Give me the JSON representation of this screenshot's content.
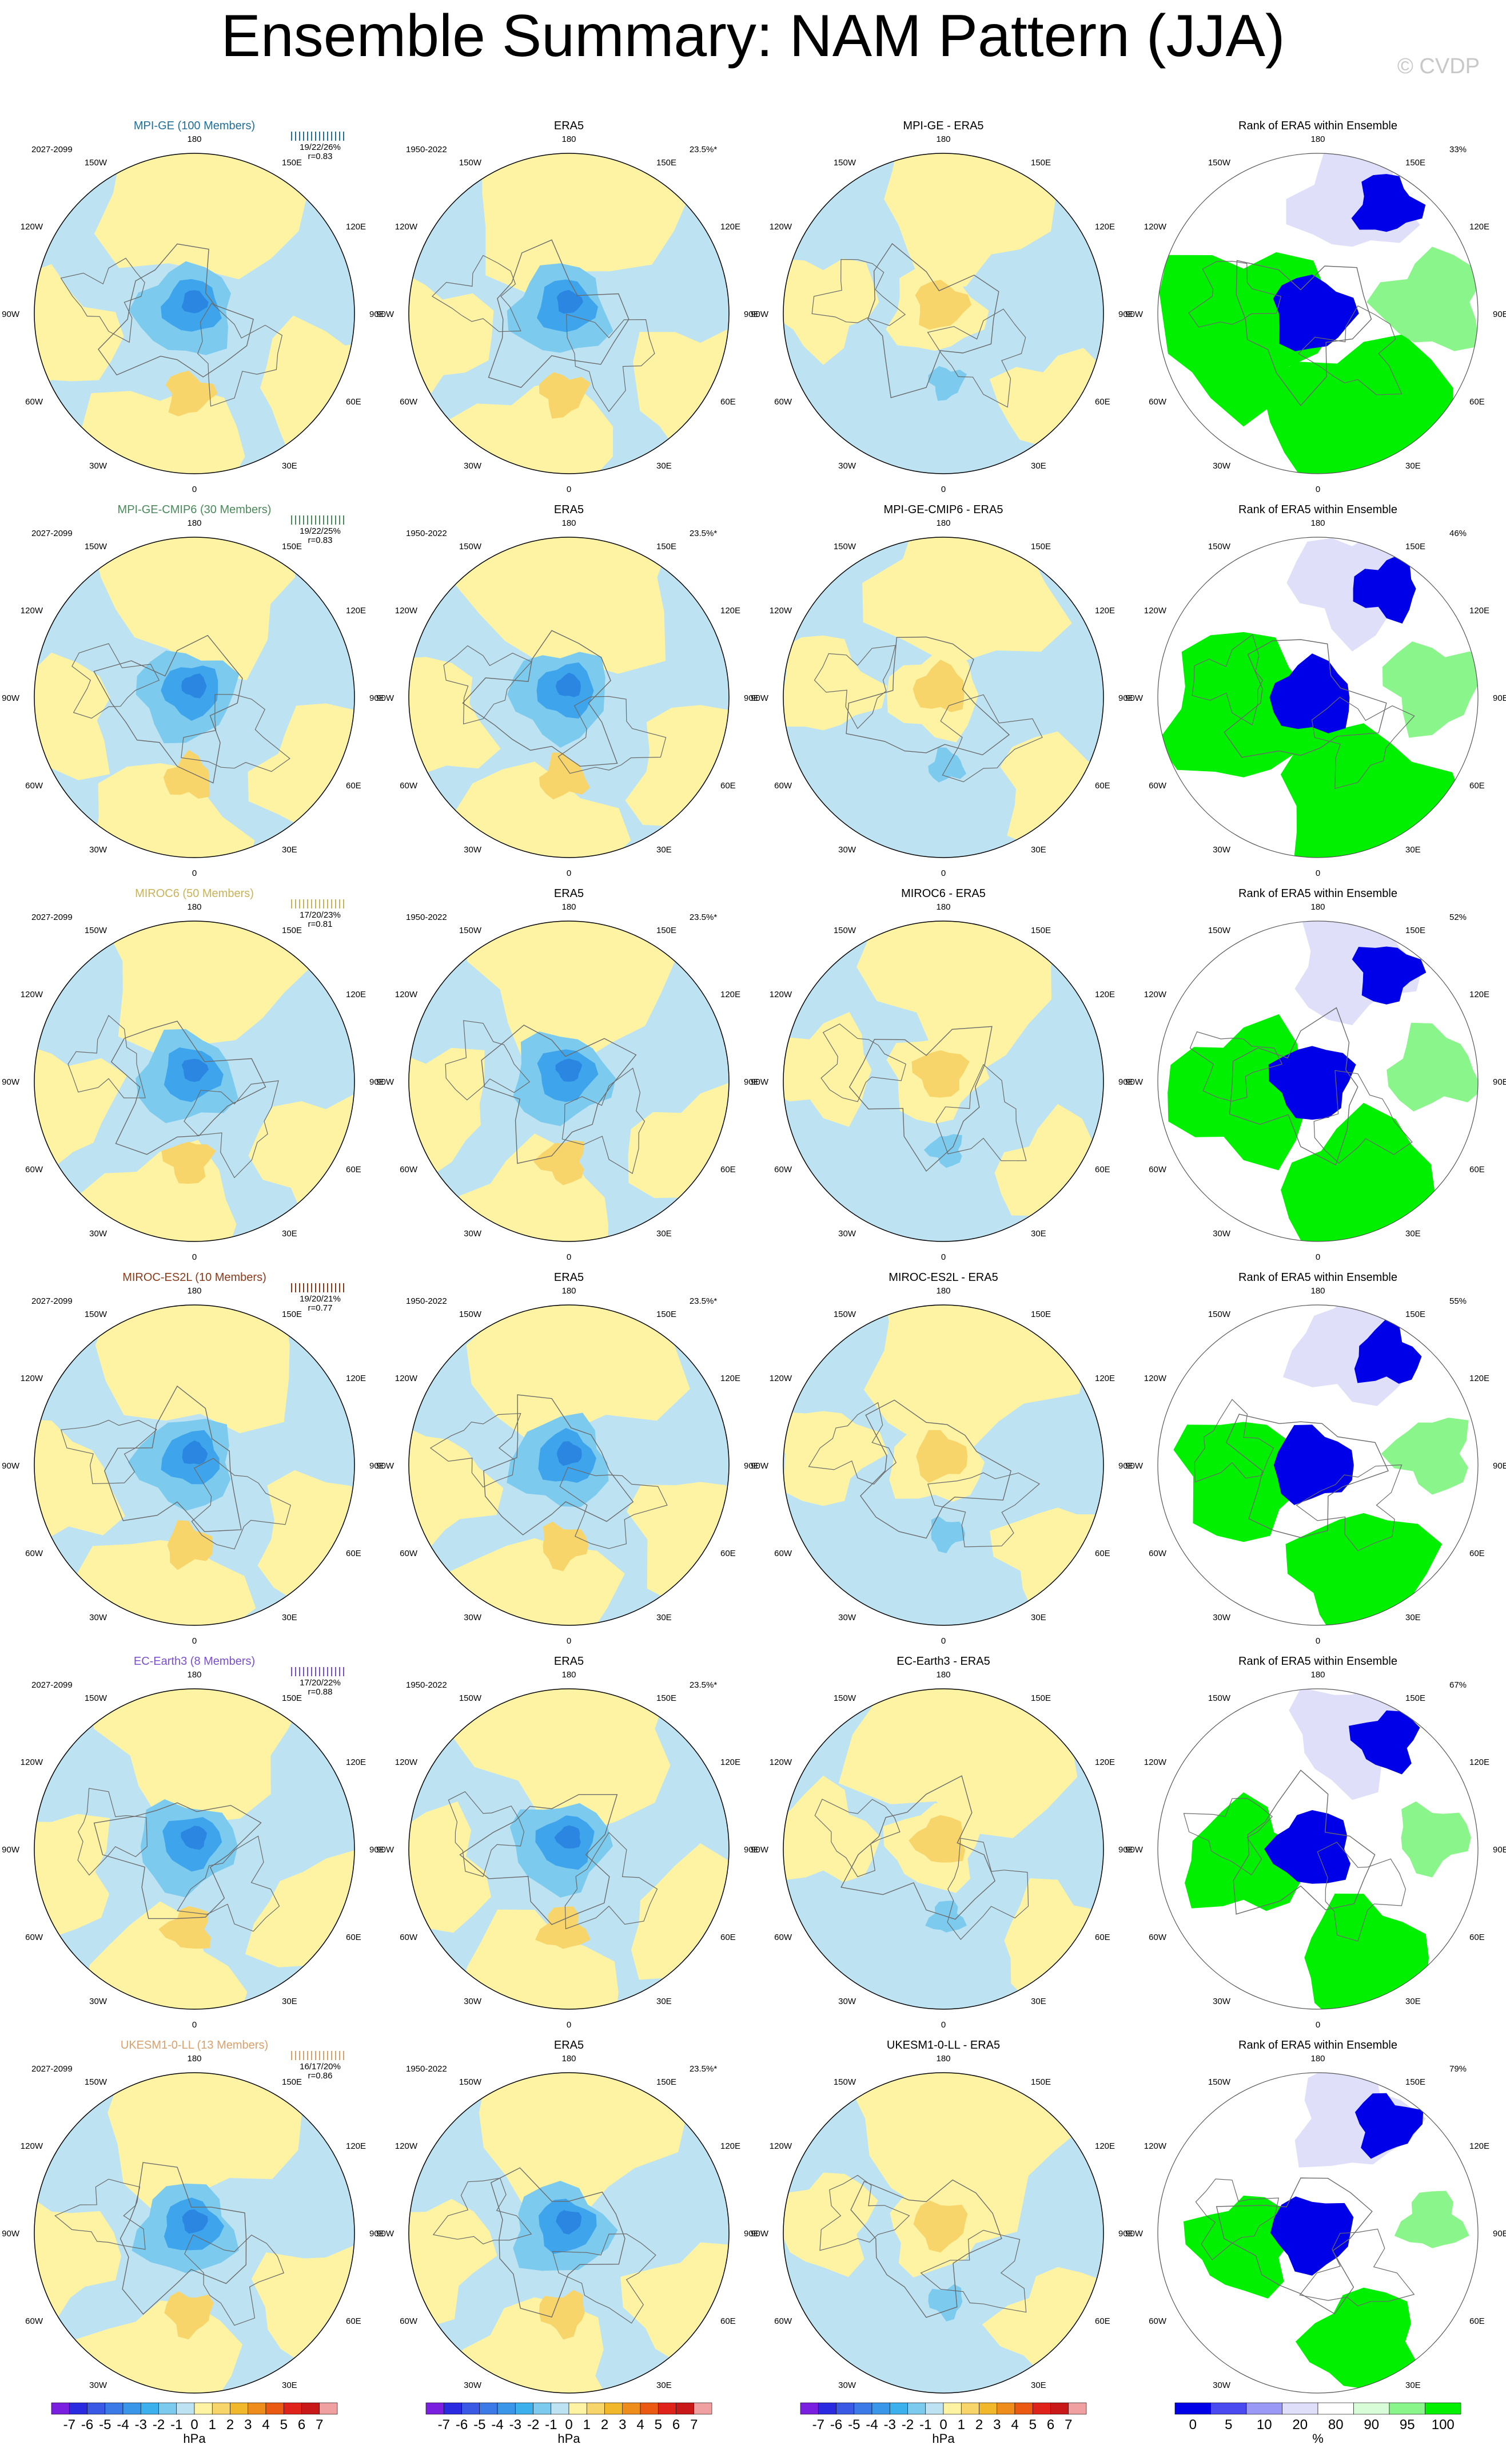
{
  "title": "Ensemble Summary: NAM Pattern (JJA)",
  "watermark": "© CVDP",
  "lon_labels": [
    "180",
    "150E",
    "120E",
    "90E",
    "60E",
    "30E",
    "0",
    "30W",
    "60W",
    "90W",
    "120W",
    "150W"
  ],
  "colors": {
    "pos_light": "#fdf3a3",
    "neg_light": "#bde3f3",
    "neg_mid": "#7ccbef",
    "neg_strong": "#3ea4ec",
    "pos_mid": "#f8d56a",
    "pos_strong": "#f1b82c",
    "rank_low": "#0000e8",
    "rank_lowmid": "#7c7cf5",
    "rank_lowlight": "#dfdff9",
    "rank_high": "#00f000",
    "rank_highmid": "#8af58a",
    "rank_highlight": "#d8fbd8"
  },
  "rows": [
    {
      "model": "MPI-GE (100 Members)",
      "model_color": "#1f6f9a",
      "period": "2027-2099",
      "stats": [
        "19/22/26%",
        "r=0.83"
      ],
      "diff_title": "MPI-GE - ERA5",
      "rank_pct": "33%"
    },
    {
      "model": "MPI-GE-CMIP6 (30 Members)",
      "model_color": "#4a8a5a",
      "period": "2027-2099",
      "stats": [
        "19/22/25%",
        "r=0.83"
      ],
      "diff_title": "MPI-GE-CMIP6 - ERA5",
      "rank_pct": "46%"
    },
    {
      "model": "MIROC6 (50 Members)",
      "model_color": "#c9b25a",
      "period": "2027-2099",
      "stats": [
        "17/20/23%",
        "r=0.81"
      ],
      "diff_title": "MIROC6 - ERA5",
      "rank_pct": "52%"
    },
    {
      "model": "MIROC-ES2L (10 Members)",
      "model_color": "#8b3a1a",
      "period": "2027-2099",
      "stats": [
        "19/20/21%",
        "r=0.77"
      ],
      "diff_title": "MIROC-ES2L - ERA5",
      "rank_pct": "55%"
    },
    {
      "model": "EC-Earth3 (8 Members)",
      "model_color": "#7a4fcf",
      "period": "2027-2099",
      "stats": [
        "17/20/22%",
        "r=0.88"
      ],
      "diff_title": "EC-Earth3 - ERA5",
      "rank_pct": "67%"
    },
    {
      "model": "UKESM1-0-LL (13 Members)",
      "model_color": "#d9a06a",
      "period": "2027-2099",
      "stats": [
        "16/17/20%",
        "r=0.86"
      ],
      "diff_title": "UKESM1-0-LL - ERA5",
      "rank_pct": "79%"
    }
  ],
  "era5": {
    "title": "ERA5",
    "period": "1950-2022",
    "pct": "23.5%*"
  },
  "rank_title": "Rank of ERA5 within Ensemble",
  "colorbar_hpa": {
    "labels": [
      "-7",
      "-6",
      "-5",
      "-4",
      "-3",
      "-2",
      "-1",
      "0",
      "1",
      "2",
      "3",
      "4",
      "5",
      "6",
      "7"
    ],
    "unit": "hPa",
    "colors": [
      "#7a1fe0",
      "#2a2ae0",
      "#3a5ae6",
      "#3c7ae8",
      "#3a96e8",
      "#3cb0ec",
      "#7ccbef",
      "#bde3f3",
      "#fdf3a3",
      "#f8d56a",
      "#f1b82c",
      "#ee8d1c",
      "#ea5a12",
      "#e0231a",
      "#c81818",
      "#f0a0a0"
    ]
  },
  "colorbar_rank": {
    "labels": [
      "0",
      "5",
      "10",
      "20",
      "80",
      "90",
      "95",
      "100"
    ],
    "unit": "%",
    "colors": [
      "#0000e8",
      "#4a4af0",
      "#9a9af6",
      "#dfdff9",
      "#ffffff",
      "#d8fbd8",
      "#8af58a",
      "#00f000"
    ]
  }
}
